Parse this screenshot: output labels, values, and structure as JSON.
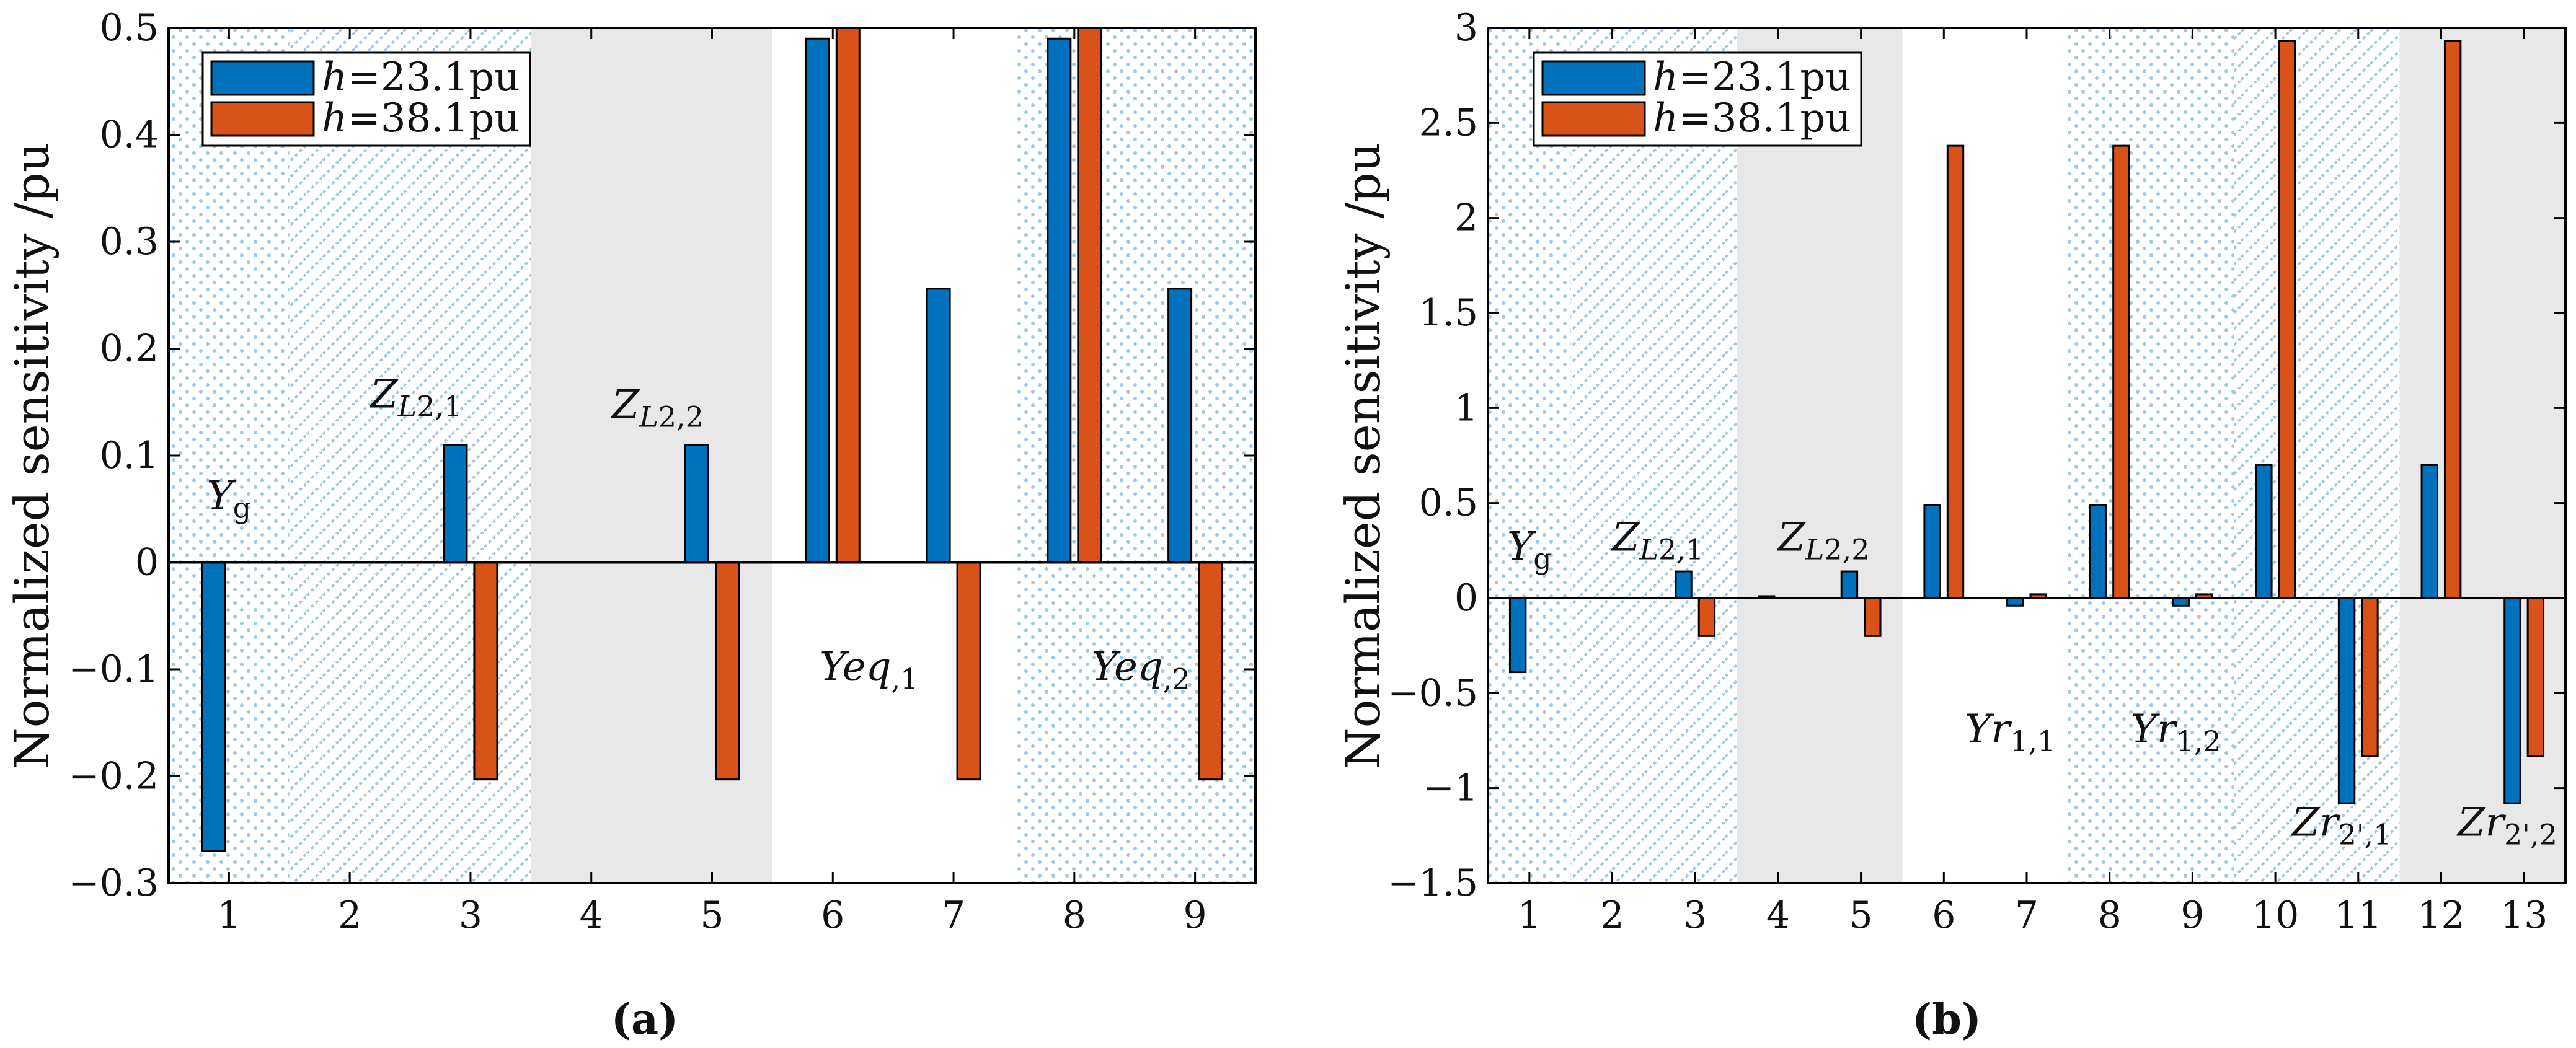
{
  "figure": {
    "caption_a": "(a)",
    "caption_b": "(b)"
  },
  "colors": {
    "series1": "#0072BD",
    "series2": "#D95319",
    "shade_gray": "#e8e8e8",
    "pattern_blue": "#9dc8e6"
  },
  "chart_data": [
    {
      "type": "bar",
      "panel": "a",
      "ylabel": "Normalized sensitivity /pu",
      "xlabel": "",
      "ylim": [
        -0.3,
        0.5
      ],
      "yticks": [
        -0.3,
        -0.2,
        -0.1,
        0,
        0.1,
        0.2,
        0.3,
        0.4,
        0.5
      ],
      "ytick_labels": [
        "−0.3",
        "−0.2",
        "−0.1",
        "0",
        "0.1",
        "0.2",
        "0.3",
        "0.4",
        "0.5"
      ],
      "categories": [
        "1",
        "2",
        "3",
        "4",
        "5",
        "6",
        "7",
        "8",
        "9"
      ],
      "legend": {
        "placement": "top-left",
        "entries": [
          "h=23.1pu",
          "h=38.1pu"
        ]
      },
      "series": [
        {
          "name": "h=23.1pu",
          "values": [
            -0.27,
            0,
            0.11,
            0,
            0.11,
            0.49,
            0.256,
            0.49,
            0.256
          ]
        },
        {
          "name": "h=38.1pu",
          "values": [
            0,
            0,
            -0.203,
            0,
            -0.203,
            0.5,
            -0.203,
            0.5,
            -0.203
          ]
        }
      ],
      "regions": [
        {
          "from": 0.5,
          "to": 1.5,
          "pattern": "dots"
        },
        {
          "from": 1.5,
          "to": 3.5,
          "pattern": "hatch"
        },
        {
          "from": 3.5,
          "to": 5.5,
          "pattern": "gray"
        },
        {
          "from": 5.5,
          "to": 7.5,
          "pattern": "none"
        },
        {
          "from": 7.5,
          "to": 9.5,
          "pattern": "dots"
        }
      ],
      "annotations": [
        {
          "text": "Yg",
          "x": 1,
          "y": 0.05
        },
        {
          "text": "ZL2,1",
          "x": 2.55,
          "y": 0.145
        },
        {
          "text": "ZL2,2",
          "x": 4.55,
          "y": 0.135
        },
        {
          "text": "Yeq,1",
          "x": 6.3,
          "y": -0.11
        },
        {
          "text": "Yeq,2",
          "x": 8.55,
          "y": -0.11
        }
      ]
    },
    {
      "type": "bar",
      "panel": "b",
      "ylabel": "Normalized sensitivity /pu",
      "xlabel": "",
      "ylim": [
        -1.5,
        3
      ],
      "yticks": [
        -1.5,
        -1,
        -0.5,
        0,
        0.5,
        1,
        1.5,
        2,
        2.5,
        3
      ],
      "ytick_labels": [
        "−1.5",
        "−1",
        "−0.5",
        "0",
        "0.5",
        "1",
        "1.5",
        "2",
        "2.5",
        "3"
      ],
      "categories": [
        "1",
        "2",
        "3",
        "4",
        "5",
        "6",
        "7",
        "8",
        "9",
        "10",
        "11",
        "12",
        "13"
      ],
      "legend": {
        "placement": "top-left",
        "entries": [
          "h=23.1pu",
          "h=38.1pu"
        ]
      },
      "series": [
        {
          "name": "h=23.1pu",
          "values": [
            -0.39,
            0,
            0.14,
            0.01,
            0.14,
            0.49,
            -0.04,
            0.49,
            -0.04,
            0.7,
            -1.08,
            0.7,
            -1.08
          ]
        },
        {
          "name": "h=38.1pu",
          "values": [
            0,
            0,
            -0.2,
            0,
            -0.2,
            2.38,
            0.02,
            2.38,
            0.02,
            2.93,
            -0.83,
            2.93,
            -0.83
          ]
        }
      ],
      "regions": [
        {
          "from": 0.5,
          "to": 1.5,
          "pattern": "dots"
        },
        {
          "from": 1.5,
          "to": 3.5,
          "pattern": "hatch"
        },
        {
          "from": 3.5,
          "to": 5.5,
          "pattern": "gray"
        },
        {
          "from": 5.5,
          "to": 7.5,
          "pattern": "none"
        },
        {
          "from": 7.5,
          "to": 9.5,
          "pattern": "dots"
        },
        {
          "from": 9.5,
          "to": 11.5,
          "pattern": "hatch"
        },
        {
          "from": 11.5,
          "to": 13.5,
          "pattern": "gray"
        }
      ],
      "annotations": [
        {
          "text": "Yg",
          "x": 1,
          "y": 0.2
        },
        {
          "text": "ZL2,1",
          "x": 2.55,
          "y": 0.25
        },
        {
          "text": "ZL2,2",
          "x": 4.55,
          "y": 0.25
        },
        {
          "text": "Yr1,1",
          "x": 6.8,
          "y": -0.76
        },
        {
          "text": "Yr1,2",
          "x": 8.8,
          "y": -0.76
        },
        {
          "text": "Zr2',1",
          "x": 10.8,
          "y": -1.25
        },
        {
          "text": "Zr2',2",
          "x": 12.8,
          "y": -1.25
        }
      ]
    }
  ]
}
